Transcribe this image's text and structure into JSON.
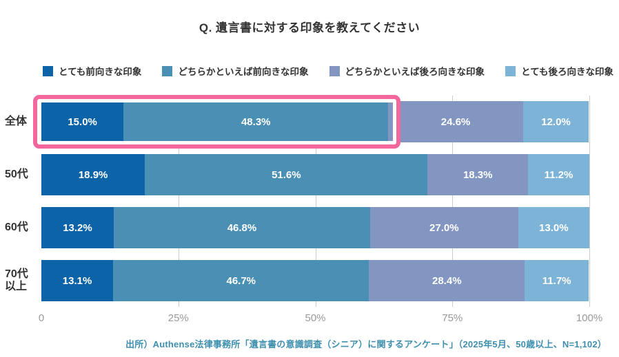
{
  "title": "Q. 遺言書に対する印象を教えてください",
  "legend": [
    {
      "label": "とても前向きな印象",
      "color": "#0d63a8"
    },
    {
      "label": "どちらかといえば前向きな印象",
      "color": "#4a8fb4"
    },
    {
      "label": "どちらかといえば後ろ向きな印象",
      "color": "#8296c1"
    },
    {
      "label": "とても後ろ向きな印象",
      "color": "#7db3d6"
    }
  ],
  "chart_data": {
    "type": "bar",
    "orientation": "horizontal",
    "stacked": true,
    "title": "Q. 遺言書に対する印象を教えてください",
    "categories": [
      "全体",
      "50代",
      "60代",
      "70代\n以上"
    ],
    "series": [
      {
        "name": "とても前向きな印象",
        "color": "#0d63a8",
        "values": [
          15.0,
          18.9,
          13.2,
          13.1
        ]
      },
      {
        "name": "どちらかといえば前向きな印象",
        "color": "#4a8fb4",
        "values": [
          48.3,
          51.6,
          46.8,
          46.7
        ]
      },
      {
        "name": "どちらかといえば後ろ向きな印象",
        "color": "#8296c1",
        "values": [
          24.6,
          18.3,
          27.0,
          28.4
        ]
      },
      {
        "name": "とても後ろ向きな印象",
        "color": "#7db3d6",
        "values": [
          12.0,
          11.2,
          13.0,
          11.7
        ]
      }
    ],
    "value_unit": "%",
    "xlim": [
      0,
      100
    ],
    "x_ticks": [
      {
        "value": 0,
        "label": "0"
      },
      {
        "value": 25,
        "label": "25%"
      },
      {
        "value": 50,
        "label": "50%"
      },
      {
        "value": 75,
        "label": "75%"
      },
      {
        "value": 100,
        "label": "100%"
      }
    ],
    "grid": true,
    "grid_positions": [
      25,
      50,
      75,
      100
    ],
    "grid_color": "#cccccc",
    "legend_position": "top",
    "highlight": {
      "category_index": 0,
      "segment_indices": [
        0,
        1
      ],
      "color": "#f4679d"
    }
  },
  "source": "出所）Authense法律事務所「遺言書の意識調査（シニア）に関するアンケート」（2025年5月、50歳以上、N=1,102）"
}
